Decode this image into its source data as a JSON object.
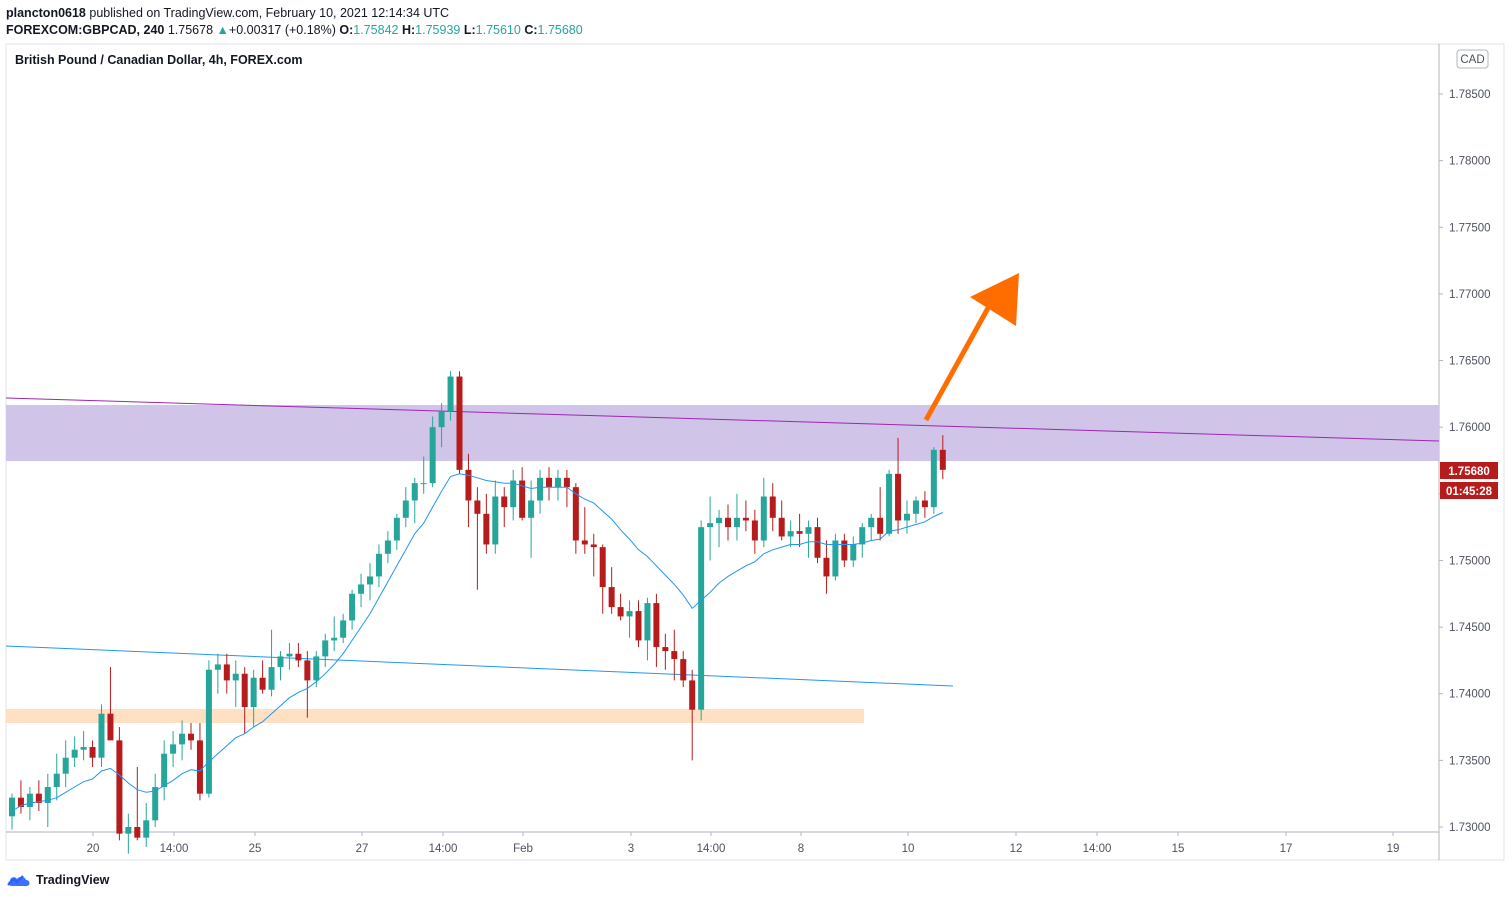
{
  "header": {
    "user": "plancton0618",
    "published": "published on TradingView.com, February 10, 2021 12:14:34 UTC",
    "symbol": "FOREXCOM:GBPCAD, 240",
    "last": "1.75678",
    "arrow": "▲",
    "change": "+0.00317 (+0.18%)",
    "o_label": "O:",
    "o": "1.75842",
    "h_label": "H:",
    "h": "1.75939",
    "l_label": "L:",
    "l": "1.75610",
    "c_label": "C:",
    "c": "1.75680"
  },
  "footer": {
    "brand": "TradingView",
    "icon": "tradingview-logo-icon"
  },
  "colors": {
    "up": "#26a69a",
    "down": "#b71c1c",
    "ema": "#2196f3",
    "zone": "#d1c4e9",
    "support": "#ffe0c2",
    "arrow": "#ff6d00",
    "resistance_line": "#9c27b0",
    "trend_line": "#2196f3"
  },
  "chart_data": {
    "type": "candlestick",
    "title": "British Pound / Canadian Dollar, 4h, FOREX.com",
    "currency": "CAD",
    "ylim": [
      1.7295,
      1.7885
    ],
    "y_ticks": [
      "1.78500",
      "1.78000",
      "1.77500",
      "1.77000",
      "1.76500",
      "1.76000",
      "1.75500",
      "1.75000",
      "1.74500",
      "1.74000",
      "1.73500",
      "1.73000"
    ],
    "x_ticks": [
      "20",
      "14:00",
      "25",
      "27",
      "14:00",
      "Feb",
      "3",
      "14:00",
      "8",
      "10",
      "12",
      "14:00",
      "15",
      "17",
      "19"
    ],
    "last_price_label": "1.75680",
    "countdown_label": "01:45:28",
    "last_price": 1.7568,
    "ohlc": [
      [
        1.7308,
        1.7325,
        1.7298,
        1.7322
      ],
      [
        1.7322,
        1.7335,
        1.731,
        1.7315
      ],
      [
        1.7315,
        1.733,
        1.7305,
        1.7325
      ],
      [
        1.7325,
        1.7335,
        1.7312,
        1.7318
      ],
      [
        1.7318,
        1.734,
        1.73,
        1.733
      ],
      [
        1.733,
        1.7355,
        1.732,
        1.734
      ],
      [
        1.734,
        1.7365,
        1.733,
        1.7352
      ],
      [
        1.7352,
        1.7368,
        1.7345,
        1.7358
      ],
      [
        1.7358,
        1.7372,
        1.735,
        1.736
      ],
      [
        1.736,
        1.7365,
        1.7345,
        1.7352
      ],
      [
        1.7352,
        1.7392,
        1.7345,
        1.7385
      ],
      [
        1.7385,
        1.742,
        1.737,
        1.7365
      ],
      [
        1.7365,
        1.7375,
        1.729,
        1.7295
      ],
      [
        1.7295,
        1.731,
        1.728,
        1.73
      ],
      [
        1.73,
        1.7345,
        1.729,
        1.7292
      ],
      [
        1.7292,
        1.7318,
        1.7285,
        1.7305
      ],
      [
        1.7305,
        1.734,
        1.73,
        1.733
      ],
      [
        1.733,
        1.7365,
        1.732,
        1.7355
      ],
      [
        1.7355,
        1.7372,
        1.7345,
        1.7362
      ],
      [
        1.7362,
        1.738,
        1.735,
        1.737
      ],
      [
        1.737,
        1.7378,
        1.7358,
        1.7365
      ],
      [
        1.7365,
        1.7378,
        1.732,
        1.7325
      ],
      [
        1.7325,
        1.7425,
        1.7322,
        1.7418
      ],
      [
        1.7418,
        1.743,
        1.74,
        1.7422
      ],
      [
        1.7422,
        1.743,
        1.74,
        1.741
      ],
      [
        1.741,
        1.7425,
        1.739,
        1.7415
      ],
      [
        1.7415,
        1.742,
        1.737,
        1.739
      ],
      [
        1.739,
        1.7418,
        1.7375,
        1.7412
      ],
      [
        1.7412,
        1.7425,
        1.74,
        1.7403
      ],
      [
        1.7403,
        1.7448,
        1.7398,
        1.742
      ],
      [
        1.742,
        1.7432,
        1.741,
        1.7428
      ],
      [
        1.7428,
        1.7438,
        1.7418,
        1.743
      ],
      [
        1.743,
        1.7438,
        1.742,
        1.7425
      ],
      [
        1.7425,
        1.7432,
        1.7382,
        1.741
      ],
      [
        1.741,
        1.7432,
        1.7405,
        1.7428
      ],
      [
        1.7428,
        1.7445,
        1.742,
        1.744
      ],
      [
        1.744,
        1.7458,
        1.7432,
        1.7442
      ],
      [
        1.7442,
        1.746,
        1.7438,
        1.7455
      ],
      [
        1.7455,
        1.7478,
        1.7448,
        1.7475
      ],
      [
        1.7475,
        1.749,
        1.7465,
        1.7482
      ],
      [
        1.7482,
        1.7498,
        1.747,
        1.7488
      ],
      [
        1.7488,
        1.7512,
        1.748,
        1.7505
      ],
      [
        1.7505,
        1.7522,
        1.7498,
        1.7515
      ],
      [
        1.7515,
        1.7535,
        1.7508,
        1.7532
      ],
      [
        1.7532,
        1.7555,
        1.7525,
        1.7545
      ],
      [
        1.7545,
        1.7562,
        1.7528,
        1.7558
      ],
      [
        1.7558,
        1.7578,
        1.755,
        1.7558
      ],
      [
        1.7558,
        1.7608,
        1.7555,
        1.76
      ],
      [
        1.76,
        1.7618,
        1.7585,
        1.7612
      ],
      [
        1.7612,
        1.7642,
        1.7605,
        1.7638
      ],
      [
        1.7638,
        1.7642,
        1.7565,
        1.7568
      ],
      [
        1.7568,
        1.758,
        1.7525,
        1.7545
      ],
      [
        1.7545,
        1.7555,
        1.7478,
        1.7535
      ],
      [
        1.7535,
        1.755,
        1.7505,
        1.7512
      ],
      [
        1.7512,
        1.756,
        1.7505,
        1.7548
      ],
      [
        1.7548,
        1.7555,
        1.7525,
        1.754
      ],
      [
        1.754,
        1.7568,
        1.753,
        1.756
      ],
      [
        1.756,
        1.757,
        1.753,
        1.7532
      ],
      [
        1.7532,
        1.756,
        1.7502,
        1.7545
      ],
      [
        1.7545,
        1.7568,
        1.7535,
        1.7562
      ],
      [
        1.7562,
        1.757,
        1.7545,
        1.7555
      ],
      [
        1.7555,
        1.7568,
        1.7545,
        1.7562
      ],
      [
        1.7562,
        1.7568,
        1.754,
        1.7555
      ],
      [
        1.7555,
        1.7558,
        1.7505,
        1.7515
      ],
      [
        1.7515,
        1.754,
        1.7505,
        1.7512
      ],
      [
        1.7512,
        1.752,
        1.7488,
        1.751
      ],
      [
        1.751,
        1.7512,
        1.746,
        1.748
      ],
      [
        1.748,
        1.7495,
        1.746,
        1.7465
      ],
      [
        1.7465,
        1.7475,
        1.7455,
        1.7458
      ],
      [
        1.7458,
        1.747,
        1.7442,
        1.7462
      ],
      [
        1.7462,
        1.747,
        1.7435,
        1.744
      ],
      [
        1.744,
        1.7472,
        1.7425,
        1.7468
      ],
      [
        1.7468,
        1.7475,
        1.742,
        1.7435
      ],
      [
        1.7435,
        1.7445,
        1.7418,
        1.7432
      ],
      [
        1.7432,
        1.7448,
        1.741,
        1.7426
      ],
      [
        1.7426,
        1.7432,
        1.7405,
        1.741
      ],
      [
        1.741,
        1.7418,
        1.735,
        1.7388
      ],
      [
        1.7388,
        1.753,
        1.738,
        1.7525
      ],
      [
        1.7525,
        1.7548,
        1.75,
        1.7528
      ],
      [
        1.7528,
        1.7538,
        1.751,
        1.7532
      ],
      [
        1.7532,
        1.7542,
        1.7515,
        1.7525
      ],
      [
        1.7525,
        1.755,
        1.7515,
        1.7532
      ],
      [
        1.7532,
        1.7545,
        1.7522,
        1.753
      ],
      [
        1.753,
        1.7538,
        1.7505,
        1.7515
      ],
      [
        1.7515,
        1.7562,
        1.751,
        1.7548
      ],
      [
        1.7548,
        1.7558,
        1.7522,
        1.7532
      ],
      [
        1.7532,
        1.7545,
        1.7515,
        1.7518
      ],
      [
        1.7518,
        1.753,
        1.751,
        1.7522
      ],
      [
        1.7522,
        1.7535,
        1.751,
        1.752
      ],
      [
        1.752,
        1.753,
        1.7502,
        1.7525
      ],
      [
        1.7525,
        1.7532,
        1.7498,
        1.7502
      ],
      [
        1.7502,
        1.7515,
        1.7475,
        1.7488
      ],
      [
        1.7488,
        1.752,
        1.7485,
        1.7515
      ],
      [
        1.7515,
        1.752,
        1.7495,
        1.75
      ],
      [
        1.75,
        1.7518,
        1.7495,
        1.7512
      ],
      [
        1.7512,
        1.7528,
        1.7502,
        1.7525
      ],
      [
        1.7525,
        1.7535,
        1.7515,
        1.7532
      ],
      [
        1.7532,
        1.7555,
        1.7515,
        1.752
      ],
      [
        1.752,
        1.7568,
        1.7518,
        1.7565
      ],
      [
        1.7565,
        1.7592,
        1.752,
        1.753
      ],
      [
        1.753,
        1.7545,
        1.752,
        1.7535
      ],
      [
        1.7535,
        1.7548,
        1.7528,
        1.7545
      ],
      [
        1.7545,
        1.7552,
        1.7532,
        1.754
      ],
      [
        1.754,
        1.7585,
        1.7535,
        1.7583
      ],
      [
        1.7583,
        1.7594,
        1.7561,
        1.7568
      ]
    ],
    "ema20": [
      1.7312,
      1.7316,
      1.7318,
      1.7319,
      1.732,
      1.7322,
      1.7326,
      1.733,
      1.7334,
      1.7336,
      1.7342,
      1.7344,
      1.7339,
      1.7333,
      1.7328,
      1.7326,
      1.7327,
      1.7331,
      1.7335,
      1.734,
      1.7343,
      1.7342,
      1.7349,
      1.7355,
      1.7361,
      1.7367,
      1.737,
      1.7375,
      1.7379,
      1.7385,
      1.7391,
      1.7397,
      1.7401,
      1.7404,
      1.7409,
      1.7415,
      1.7422,
      1.743,
      1.744,
      1.745,
      1.746,
      1.7472,
      1.7484,
      1.7496,
      1.7508,
      1.752,
      1.7528,
      1.754,
      1.7552,
      1.7563,
      1.7565,
      1.7564,
      1.7562,
      1.756,
      1.7559,
      1.7558,
      1.7558,
      1.7556,
      1.7554,
      1.7555,
      1.7555,
      1.7555,
      1.7555,
      1.755,
      1.7546,
      1.7543,
      1.7537,
      1.7531,
      1.7523,
      1.7516,
      1.7508,
      1.7503,
      1.7496,
      1.7489,
      1.7482,
      1.7474,
      1.7464,
      1.747,
      1.7476,
      1.7483,
      1.7488,
      1.7492,
      1.7496,
      1.7499,
      1.7505,
      1.7508,
      1.751,
      1.7512,
      1.7512,
      1.7514,
      1.7514,
      1.7512,
      1.7512,
      1.7512,
      1.7512,
      1.7513,
      1.7515,
      1.7516,
      1.7522,
      1.7523,
      1.7525,
      1.7527,
      1.7529,
      1.7533,
      1.7536
    ]
  }
}
